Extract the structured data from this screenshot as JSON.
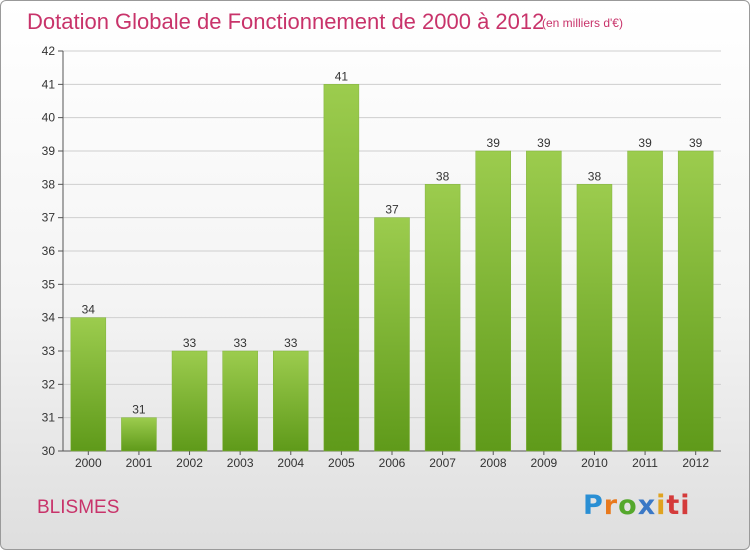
{
  "chart_data": {
    "type": "bar",
    "title": "Dotation Globale de Fonctionnement de 2000 à 2012",
    "subtitle": "(en milliers d'€)",
    "categories": [
      "2000",
      "2001",
      "2002",
      "2003",
      "2004",
      "2005",
      "2006",
      "2007",
      "2008",
      "2009",
      "2010",
      "2011",
      "2012"
    ],
    "values": [
      34,
      31,
      33,
      33,
      33,
      41,
      37,
      38,
      39,
      39,
      38,
      39,
      39
    ],
    "ylim": [
      30,
      42
    ],
    "yticks": [
      30,
      31,
      32,
      33,
      34,
      35,
      36,
      37,
      38,
      39,
      40,
      41,
      42
    ],
    "grid": true,
    "bar_color_top": "#9ccc4e",
    "bar_color_bottom": "#5f9a1a"
  },
  "commune": "BLISMES",
  "logo": {
    "text": "Proxiti",
    "parts": [
      "P",
      "r",
      "o",
      "x",
      "i",
      "ti"
    ]
  },
  "colors": {
    "title": "#c8336a",
    "grid": "#cfcfcf"
  }
}
